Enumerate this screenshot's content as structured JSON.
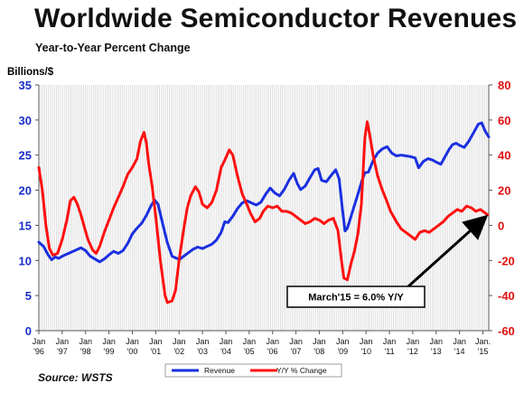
{
  "header": {
    "title": "Worldwide Semiconductor Revenues",
    "subtitle": "Year-to-Year Percent Change",
    "left_unit": "Billions/$",
    "source": "Source: WSTS"
  },
  "colors": {
    "revenue": "#1a2fe0",
    "yoy": "#ff1010",
    "grid": "#c8c8c8"
  },
  "chart_data": {
    "type": "line",
    "title": "Worldwide Semiconductor Revenues",
    "subtitle": "Year-to-Year Percent Change",
    "ylabel": "Billions/$",
    "ylim": [
      0,
      35
    ],
    "yticks": [
      0,
      5,
      10,
      15,
      20,
      25,
      30,
      35
    ],
    "y2lim": [
      -60,
      80
    ],
    "y2ticks": [
      -60,
      -40,
      -20,
      0,
      20,
      40,
      60,
      80
    ],
    "x_range": [
      1996.0,
      2015.25
    ],
    "grid": true,
    "legend_position": "bottom-center",
    "x_ticks": [
      {
        "x": 1996.0,
        "l1": "Jan",
        "l2": "'96"
      },
      {
        "x": 1997.0,
        "l1": "Jan",
        "l2": "'97"
      },
      {
        "x": 1998.0,
        "l1": "Jan",
        "l2": "'98"
      },
      {
        "x": 1999.0,
        "l1": "Jan",
        "l2": "'99"
      },
      {
        "x": 2000.0,
        "l1": "Jan",
        "l2": "'00"
      },
      {
        "x": 2001.0,
        "l1": "Jan",
        "l2": "'01"
      },
      {
        "x": 2002.0,
        "l1": "Jan",
        "l2": "'02"
      },
      {
        "x": 2003.0,
        "l1": "Jan",
        "l2": "'03"
      },
      {
        "x": 2004.0,
        "l1": "Jan",
        "l2": "'04"
      },
      {
        "x": 2005.0,
        "l1": "Jan",
        "l2": "'05"
      },
      {
        "x": 2006.0,
        "l1": "Jan",
        "l2": "'06"
      },
      {
        "x": 2007.0,
        "l1": "Jan",
        "l2": "'07"
      },
      {
        "x": 2008.0,
        "l1": "Jan",
        "l2": "'08"
      },
      {
        "x": 2009.0,
        "l1": "Jan",
        "l2": "'09"
      },
      {
        "x": 2010.0,
        "l1": "Jan",
        "l2": "'10"
      },
      {
        "x": 2011.0,
        "l1": "Jan",
        "l2": "'11"
      },
      {
        "x": 2012.0,
        "l1": "Jan",
        "l2": "'12"
      },
      {
        "x": 2013.0,
        "l1": "Jan",
        "l2": "'13"
      },
      {
        "x": 2014.0,
        "l1": "Jan",
        "l2": "'14"
      },
      {
        "x": 2015.0,
        "l1": "Jan.",
        "l2": "'15"
      }
    ],
    "series": [
      {
        "name": "Revenue",
        "axis": "left",
        "color": "#1a2fe0",
        "points": [
          [
            1996.0,
            12.6
          ],
          [
            1996.2,
            12.0
          ],
          [
            1996.4,
            10.8
          ],
          [
            1996.55,
            10.1
          ],
          [
            1996.7,
            10.5
          ],
          [
            1996.85,
            10.3
          ],
          [
            1997.0,
            10.6
          ],
          [
            1997.2,
            10.9
          ],
          [
            1997.4,
            11.2
          ],
          [
            1997.6,
            11.5
          ],
          [
            1997.8,
            11.8
          ],
          [
            1998.0,
            11.4
          ],
          [
            1998.2,
            10.6
          ],
          [
            1998.4,
            10.2
          ],
          [
            1998.6,
            9.8
          ],
          [
            1998.8,
            10.2
          ],
          [
            1999.0,
            10.8
          ],
          [
            1999.2,
            11.3
          ],
          [
            1999.4,
            11.0
          ],
          [
            1999.6,
            11.4
          ],
          [
            1999.8,
            12.4
          ],
          [
            2000.0,
            13.8
          ],
          [
            2000.2,
            14.6
          ],
          [
            2000.4,
            15.3
          ],
          [
            2000.6,
            16.4
          ],
          [
            2000.8,
            17.8
          ],
          [
            2000.95,
            18.6
          ],
          [
            2001.1,
            18.0
          ],
          [
            2001.3,
            15.2
          ],
          [
            2001.5,
            12.5
          ],
          [
            2001.7,
            10.6
          ],
          [
            2001.9,
            10.3
          ],
          [
            2002.05,
            10.2
          ],
          [
            2002.2,
            10.6
          ],
          [
            2002.4,
            11.1
          ],
          [
            2002.6,
            11.6
          ],
          [
            2002.8,
            11.9
          ],
          [
            2003.0,
            11.7
          ],
          [
            2003.2,
            12.0
          ],
          [
            2003.4,
            12.3
          ],
          [
            2003.6,
            12.9
          ],
          [
            2003.8,
            14.0
          ],
          [
            2003.95,
            15.5
          ],
          [
            2004.1,
            15.4
          ],
          [
            2004.3,
            16.3
          ],
          [
            2004.5,
            17.4
          ],
          [
            2004.7,
            18.2
          ],
          [
            2004.9,
            18.5
          ],
          [
            2005.1,
            18.2
          ],
          [
            2005.3,
            17.9
          ],
          [
            2005.5,
            18.3
          ],
          [
            2005.7,
            19.4
          ],
          [
            2005.9,
            20.3
          ],
          [
            2006.1,
            19.6
          ],
          [
            2006.3,
            19.2
          ],
          [
            2006.5,
            20.1
          ],
          [
            2006.7,
            21.4
          ],
          [
            2006.9,
            22.4
          ],
          [
            2007.05,
            21.0
          ],
          [
            2007.2,
            20.1
          ],
          [
            2007.4,
            20.6
          ],
          [
            2007.6,
            21.8
          ],
          [
            2007.8,
            22.9
          ],
          [
            2007.95,
            23.1
          ],
          [
            2008.1,
            21.4
          ],
          [
            2008.3,
            21.2
          ],
          [
            2008.5,
            22.1
          ],
          [
            2008.7,
            22.9
          ],
          [
            2008.85,
            21.6
          ],
          [
            2009.0,
            17.0
          ],
          [
            2009.1,
            14.2
          ],
          [
            2009.2,
            14.6
          ],
          [
            2009.35,
            16.2
          ],
          [
            2009.5,
            17.8
          ],
          [
            2009.65,
            19.4
          ],
          [
            2009.8,
            21.1
          ],
          [
            2009.95,
            22.5
          ],
          [
            2010.1,
            22.6
          ],
          [
            2010.3,
            24.2
          ],
          [
            2010.5,
            25.3
          ],
          [
            2010.7,
            25.9
          ],
          [
            2010.9,
            26.2
          ],
          [
            2011.1,
            25.3
          ],
          [
            2011.3,
            24.9
          ],
          [
            2011.5,
            25.0
          ],
          [
            2011.7,
            24.9
          ],
          [
            2011.9,
            24.8
          ],
          [
            2012.1,
            24.6
          ],
          [
            2012.25,
            23.2
          ],
          [
            2012.45,
            24.1
          ],
          [
            2012.65,
            24.5
          ],
          [
            2012.85,
            24.3
          ],
          [
            2013.0,
            24.0
          ],
          [
            2013.2,
            23.7
          ],
          [
            2013.4,
            24.9
          ],
          [
            2013.55,
            25.8
          ],
          [
            2013.7,
            26.5
          ],
          [
            2013.85,
            26.7
          ],
          [
            2014.0,
            26.4
          ],
          [
            2014.2,
            26.1
          ],
          [
            2014.4,
            27.0
          ],
          [
            2014.6,
            28.2
          ],
          [
            2014.8,
            29.4
          ],
          [
            2014.95,
            29.6
          ],
          [
            2015.1,
            28.4
          ],
          [
            2015.25,
            27.6
          ]
        ]
      },
      {
        "name": "Y/Y % Change",
        "axis": "right",
        "color": "#ff1010",
        "points": [
          [
            1996.0,
            33
          ],
          [
            1996.15,
            20
          ],
          [
            1996.3,
            0
          ],
          [
            1996.45,
            -13
          ],
          [
            1996.6,
            -17
          ],
          [
            1996.8,
            -16
          ],
          [
            1997.0,
            -8
          ],
          [
            1997.2,
            3
          ],
          [
            1997.35,
            14
          ],
          [
            1997.5,
            16
          ],
          [
            1997.65,
            12
          ],
          [
            1997.8,
            6
          ],
          [
            1997.95,
            -1
          ],
          [
            1998.1,
            -8
          ],
          [
            1998.3,
            -14
          ],
          [
            1998.45,
            -16
          ],
          [
            1998.6,
            -12
          ],
          [
            1998.8,
            -4
          ],
          [
            1999.0,
            3
          ],
          [
            1999.2,
            10
          ],
          [
            1999.4,
            16
          ],
          [
            1999.6,
            22
          ],
          [
            1999.8,
            29
          ],
          [
            2000.0,
            33
          ],
          [
            2000.2,
            38
          ],
          [
            2000.35,
            48
          ],
          [
            2000.5,
            53
          ],
          [
            2000.6,
            47
          ],
          [
            2000.7,
            35
          ],
          [
            2000.85,
            22
          ],
          [
            2001.0,
            5
          ],
          [
            2001.2,
            -20
          ],
          [
            2001.4,
            -40
          ],
          [
            2001.5,
            -44
          ],
          [
            2001.7,
            -43
          ],
          [
            2001.85,
            -37
          ],
          [
            2002.0,
            -20
          ],
          [
            2002.2,
            -2
          ],
          [
            2002.35,
            10
          ],
          [
            2002.5,
            17
          ],
          [
            2002.7,
            22
          ],
          [
            2002.85,
            19
          ],
          [
            2003.0,
            12
          ],
          [
            2003.2,
            10
          ],
          [
            2003.4,
            13
          ],
          [
            2003.6,
            20
          ],
          [
            2003.8,
            33
          ],
          [
            2003.95,
            37
          ],
          [
            2004.15,
            43
          ],
          [
            2004.3,
            40
          ],
          [
            2004.5,
            28
          ],
          [
            2004.7,
            18
          ],
          [
            2004.9,
            12
          ],
          [
            2005.05,
            7
          ],
          [
            2005.25,
            2
          ],
          [
            2005.45,
            4
          ],
          [
            2005.6,
            8
          ],
          [
            2005.8,
            11
          ],
          [
            2006.0,
            10
          ],
          [
            2006.2,
            11
          ],
          [
            2006.4,
            8
          ],
          [
            2006.6,
            8
          ],
          [
            2006.8,
            7
          ],
          [
            2007.0,
            5
          ],
          [
            2007.2,
            3
          ],
          [
            2007.4,
            1
          ],
          [
            2007.6,
            2
          ],
          [
            2007.8,
            4
          ],
          [
            2008.0,
            3
          ],
          [
            2008.2,
            1
          ],
          [
            2008.4,
            3
          ],
          [
            2008.6,
            4
          ],
          [
            2008.8,
            -3
          ],
          [
            2008.95,
            -20
          ],
          [
            2009.05,
            -30
          ],
          [
            2009.2,
            -31
          ],
          [
            2009.35,
            -22
          ],
          [
            2009.5,
            -15
          ],
          [
            2009.65,
            -5
          ],
          [
            2009.8,
            12
          ],
          [
            2009.95,
            50
          ],
          [
            2010.05,
            59
          ],
          [
            2010.15,
            52
          ],
          [
            2010.3,
            40
          ],
          [
            2010.5,
            28
          ],
          [
            2010.7,
            20
          ],
          [
            2010.85,
            15
          ],
          [
            2011.05,
            8
          ],
          [
            2011.3,
            2
          ],
          [
            2011.5,
            -2
          ],
          [
            2011.7,
            -4
          ],
          [
            2011.9,
            -6
          ],
          [
            2012.1,
            -8
          ],
          [
            2012.3,
            -4
          ],
          [
            2012.5,
            -3
          ],
          [
            2012.7,
            -4
          ],
          [
            2012.9,
            -2
          ],
          [
            2013.1,
            0
          ],
          [
            2013.3,
            2
          ],
          [
            2013.5,
            5
          ],
          [
            2013.7,
            7
          ],
          [
            2013.9,
            9
          ],
          [
            2014.1,
            8
          ],
          [
            2014.3,
            11
          ],
          [
            2014.5,
            10
          ],
          [
            2014.7,
            8
          ],
          [
            2014.9,
            9
          ],
          [
            2015.1,
            7
          ],
          [
            2015.2,
            6
          ]
        ]
      }
    ],
    "annotations": [
      {
        "text": "March'15 = 6.0% Y/Y",
        "x": 2015.2,
        "y2": 6.0
      }
    ]
  }
}
